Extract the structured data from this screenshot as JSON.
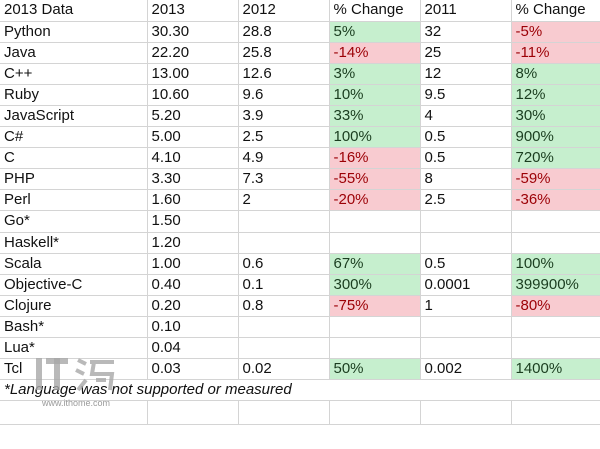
{
  "table": {
    "headers": [
      "2013 Data",
      "2013",
      "2012",
      "% Change",
      "2011",
      "% Change"
    ],
    "rows": [
      {
        "language": "Python",
        "y2013": "30.30",
        "y2012": "28.8",
        "chg_12_13": "5%",
        "chg_12_13_status": "pos",
        "y2011": "32",
        "chg_11_13": "-5%",
        "chg_11_13_status": "neg"
      },
      {
        "language": "Java",
        "y2013": "22.20",
        "y2012": "25.8",
        "chg_12_13": "-14%",
        "chg_12_13_status": "neg",
        "y2011": "25",
        "chg_11_13": "-11%",
        "chg_11_13_status": "neg"
      },
      {
        "language": "C++",
        "y2013": "13.00",
        "y2012": "12.6",
        "chg_12_13": "3%",
        "chg_12_13_status": "pos",
        "y2011": "12",
        "chg_11_13": "8%",
        "chg_11_13_status": "pos"
      },
      {
        "language": "Ruby",
        "y2013": "10.60",
        "y2012": "9.6",
        "chg_12_13": "10%",
        "chg_12_13_status": "pos",
        "y2011": "9.5",
        "chg_11_13": "12%",
        "chg_11_13_status": "pos"
      },
      {
        "language": "JavaScript",
        "y2013": "5.20",
        "y2012": "3.9",
        "chg_12_13": "33%",
        "chg_12_13_status": "pos",
        "y2011": "4",
        "chg_11_13": "30%",
        "chg_11_13_status": "pos"
      },
      {
        "language": "C#",
        "y2013": "5.00",
        "y2012": "2.5",
        "chg_12_13": "100%",
        "chg_12_13_status": "pos",
        "y2011": "0.5",
        "chg_11_13": "900%",
        "chg_11_13_status": "pos"
      },
      {
        "language": "C",
        "y2013": "4.10",
        "y2012": "4.9",
        "chg_12_13": "-16%",
        "chg_12_13_status": "neg",
        "y2011": "0.5",
        "chg_11_13": "720%",
        "chg_11_13_status": "pos"
      },
      {
        "language": "PHP",
        "y2013": "3.30",
        "y2012": "7.3",
        "chg_12_13": "-55%",
        "chg_12_13_status": "neg",
        "y2011": "8",
        "chg_11_13": "-59%",
        "chg_11_13_status": "neg"
      },
      {
        "language": "Perl",
        "y2013": "1.60",
        "y2012": "2",
        "chg_12_13": "-20%",
        "chg_12_13_status": "neg",
        "y2011": "2.5",
        "chg_11_13": "-36%",
        "chg_11_13_status": "neg"
      },
      {
        "language": "Go*",
        "y2013": "1.50",
        "y2012": "",
        "chg_12_13": "",
        "chg_12_13_status": "",
        "y2011": "",
        "chg_11_13": "",
        "chg_11_13_status": ""
      },
      {
        "language": "Haskell*",
        "y2013": "1.20",
        "y2012": "",
        "chg_12_13": "",
        "chg_12_13_status": "",
        "y2011": "",
        "chg_11_13": "",
        "chg_11_13_status": ""
      },
      {
        "language": "Scala",
        "y2013": "1.00",
        "y2012": "0.6",
        "chg_12_13": "67%",
        "chg_12_13_status": "pos",
        "y2011": "0.5",
        "chg_11_13": "100%",
        "chg_11_13_status": "pos"
      },
      {
        "language": "Objective-C",
        "y2013": "0.40",
        "y2012": "0.1",
        "chg_12_13": "300%",
        "chg_12_13_status": "pos",
        "y2011": "0.0001",
        "chg_11_13": "399900%",
        "chg_11_13_status": "pos"
      },
      {
        "language": "Clojure",
        "y2013": "0.20",
        "y2012": "0.8",
        "chg_12_13": "-75%",
        "chg_12_13_status": "neg",
        "y2011": "1",
        "chg_11_13": "-80%",
        "chg_11_13_status": "neg"
      },
      {
        "language": "Bash*",
        "y2013": "0.10",
        "y2012": "",
        "chg_12_13": "",
        "chg_12_13_status": "",
        "y2011": "",
        "chg_11_13": "",
        "chg_11_13_status": ""
      },
      {
        "language": "Lua*",
        "y2013": "0.04",
        "y2012": "",
        "chg_12_13": "",
        "chg_12_13_status": "",
        "y2011": "",
        "chg_11_13": "",
        "chg_11_13_status": ""
      },
      {
        "language": "Tcl",
        "y2013": "0.03",
        "y2012": "0.02",
        "chg_12_13": "50%",
        "chg_12_13_status": "pos",
        "y2011": "0.002",
        "chg_11_13": "1400%",
        "chg_11_13_status": "pos"
      }
    ],
    "footnote": "*Language was not supported or measured"
  },
  "colors": {
    "positive_fill": "#c6efce",
    "negative_fill": "#f8cbd0",
    "negative_text": "#9c0006",
    "gridline": "#d4d4d4"
  },
  "watermark": {
    "logo_text": "IT之家",
    "url": "www.ithome.com"
  }
}
